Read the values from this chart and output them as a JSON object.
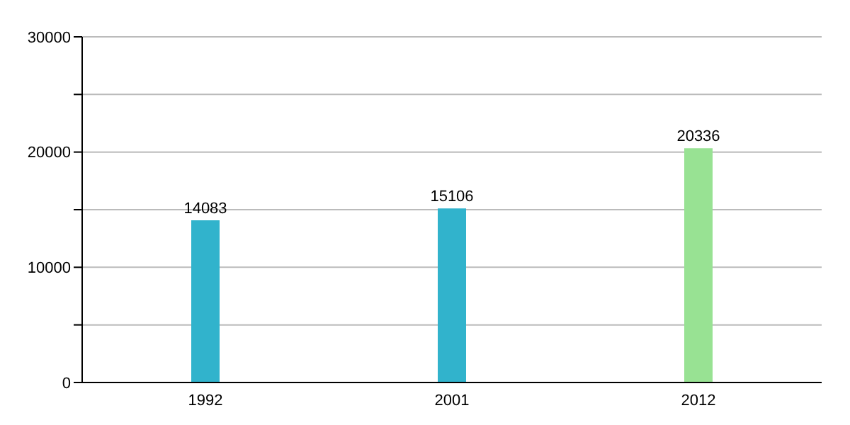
{
  "chart_data": {
    "type": "bar",
    "categories": [
      "1992",
      "2001",
      "2012"
    ],
    "values": [
      14083,
      15106,
      20336
    ],
    "colors": [
      "#31b3cc",
      "#31b3cc",
      "#98e293"
    ],
    "ylim": [
      0,
      30000
    ],
    "yticks": [
      0,
      {
        "value": 5000,
        "label": null
      },
      10000,
      {
        "value": 15000,
        "label": null
      },
      20000,
      {
        "value": 25000,
        "label": null
      },
      30000
    ],
    "grid": "y",
    "data_labels": true,
    "legend": false
  }
}
